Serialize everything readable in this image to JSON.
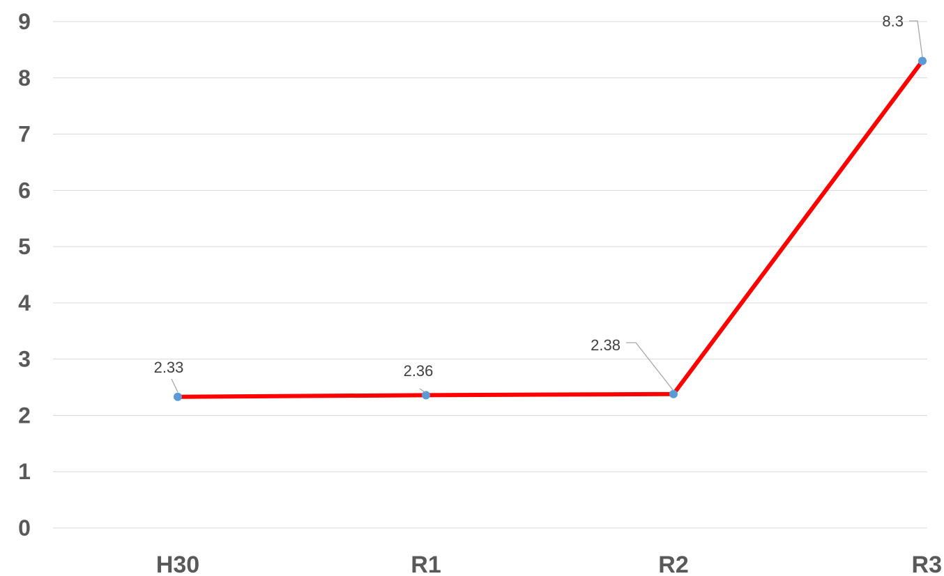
{
  "chart_data": {
    "type": "line",
    "title": "",
    "xlabel": "",
    "ylabel": "",
    "categories": [
      "H30",
      "R1",
      "R2",
      "R3"
    ],
    "series": [
      {
        "values": [
          2.33,
          2.36,
          2.38,
          8.3
        ],
        "data_labels": [
          "2.33",
          "2.36",
          "2.38",
          "8.3"
        ]
      }
    ],
    "ylim": [
      0,
      9
    ],
    "yticks": [
      "0",
      "1",
      "2",
      "3",
      "4",
      "5",
      "6",
      "7",
      "8",
      "9"
    ],
    "grid": true,
    "legend": "none",
    "colors": {
      "line": "#ff0000",
      "marker": "#5b9bd5",
      "grid": "#d9d9d9",
      "tick_text": "#595959"
    }
  }
}
